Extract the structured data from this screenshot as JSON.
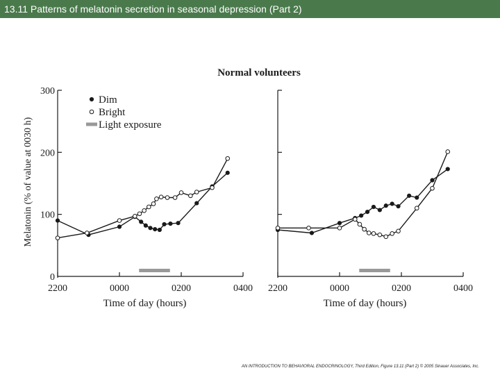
{
  "header": {
    "title": "13.11  Patterns of melatonin secretion in seasonal depression (Part 2)"
  },
  "colors": {
    "header_bg": "#4a7a4c",
    "line": "#1a1a1a",
    "light_bar": "#999999"
  },
  "footer": {
    "credit": "AN INTRODUCTION TO BEHAVIORAL ENDOCRINOLOGY, Third Edition, Figure 13.11 (Part 2)  © 2005 Sinauer Associates, Inc."
  },
  "chart_data": [
    {
      "type": "line",
      "title": "Normal volunteers",
      "xlabel": "Time of day (hours)",
      "ylabel": "Melatonin (% of value at 0030 h)",
      "x_ticks": [
        "2200",
        "0000",
        "0200",
        "0400"
      ],
      "y_ticks": [
        "0",
        "100",
        "200",
        "300"
      ],
      "ylim": [
        0,
        300
      ],
      "legend": [
        "Dim",
        "Bright",
        "Light exposure"
      ],
      "legend_placement": "top-left",
      "light_exposure": {
        "start": 0.5,
        "end": 1.5
      },
      "series": [
        {
          "name": "Dim",
          "marker": "filled",
          "points": [
            [
              -2,
              90
            ],
            [
              -1,
              67
            ],
            [
              0,
              80
            ],
            [
              0.5,
              96
            ],
            [
              0.7,
              88
            ],
            [
              0.85,
              82
            ],
            [
              1,
              78
            ],
            [
              1.15,
              76
            ],
            [
              1.3,
              75
            ],
            [
              1.45,
              84
            ],
            [
              1.65,
              85
            ],
            [
              1.9,
              86
            ],
            [
              2.5,
              118
            ],
            [
              3,
              145
            ],
            [
              3.5,
              167
            ]
          ]
        },
        {
          "name": "Bright",
          "marker": "open",
          "points": [
            [
              -2,
              62
            ],
            [
              -1.05,
              70
            ],
            [
              0,
              90
            ],
            [
              0.5,
              97
            ],
            [
              0.65,
              101
            ],
            [
              0.8,
              106
            ],
            [
              0.95,
              112
            ],
            [
              1.1,
              117
            ],
            [
              1.2,
              125
            ],
            [
              1.35,
              128
            ],
            [
              1.55,
              127
            ],
            [
              1.8,
              127
            ],
            [
              2,
              135
            ],
            [
              2.3,
              130
            ],
            [
              2.5,
              136
            ],
            [
              3,
              143
            ],
            [
              3.5,
              190
            ]
          ]
        }
      ]
    },
    {
      "type": "line",
      "title": "",
      "xlabel": "Time of day (hours)",
      "ylabel": "",
      "x_ticks": [
        "2200",
        "0000",
        "0200",
        "0400"
      ],
      "y_ticks": [],
      "ylim": [
        0,
        300
      ],
      "legend_placement": "none",
      "light_exposure": {
        "start": 0.5,
        "end": 1.5
      },
      "series": [
        {
          "name": "Dim",
          "marker": "filled",
          "points": [
            [
              -2,
              75
            ],
            [
              -0.9,
              70
            ],
            [
              0,
              86
            ],
            [
              0.5,
              94
            ],
            [
              0.7,
              98
            ],
            [
              0.9,
              104
            ],
            [
              1.1,
              112
            ],
            [
              1.3,
              107
            ],
            [
              1.5,
              114
            ],
            [
              1.7,
              117
            ],
            [
              1.9,
              113
            ],
            [
              2.25,
              130
            ],
            [
              2.5,
              127
            ],
            [
              3,
              155
            ],
            [
              3.5,
              173
            ]
          ]
        },
        {
          "name": "Bright",
          "marker": "open",
          "points": [
            [
              -2,
              78
            ],
            [
              -1,
              78
            ],
            [
              0,
              78
            ],
            [
              0.5,
              92
            ],
            [
              0.65,
              84
            ],
            [
              0.8,
              76
            ],
            [
              0.95,
              70
            ],
            [
              1.1,
              69
            ],
            [
              1.3,
              67
            ],
            [
              1.5,
              64
            ],
            [
              1.7,
              69
            ],
            [
              1.9,
              73
            ],
            [
              2.5,
              110
            ],
            [
              3,
              142
            ],
            [
              3.5,
              201
            ]
          ]
        }
      ]
    }
  ]
}
